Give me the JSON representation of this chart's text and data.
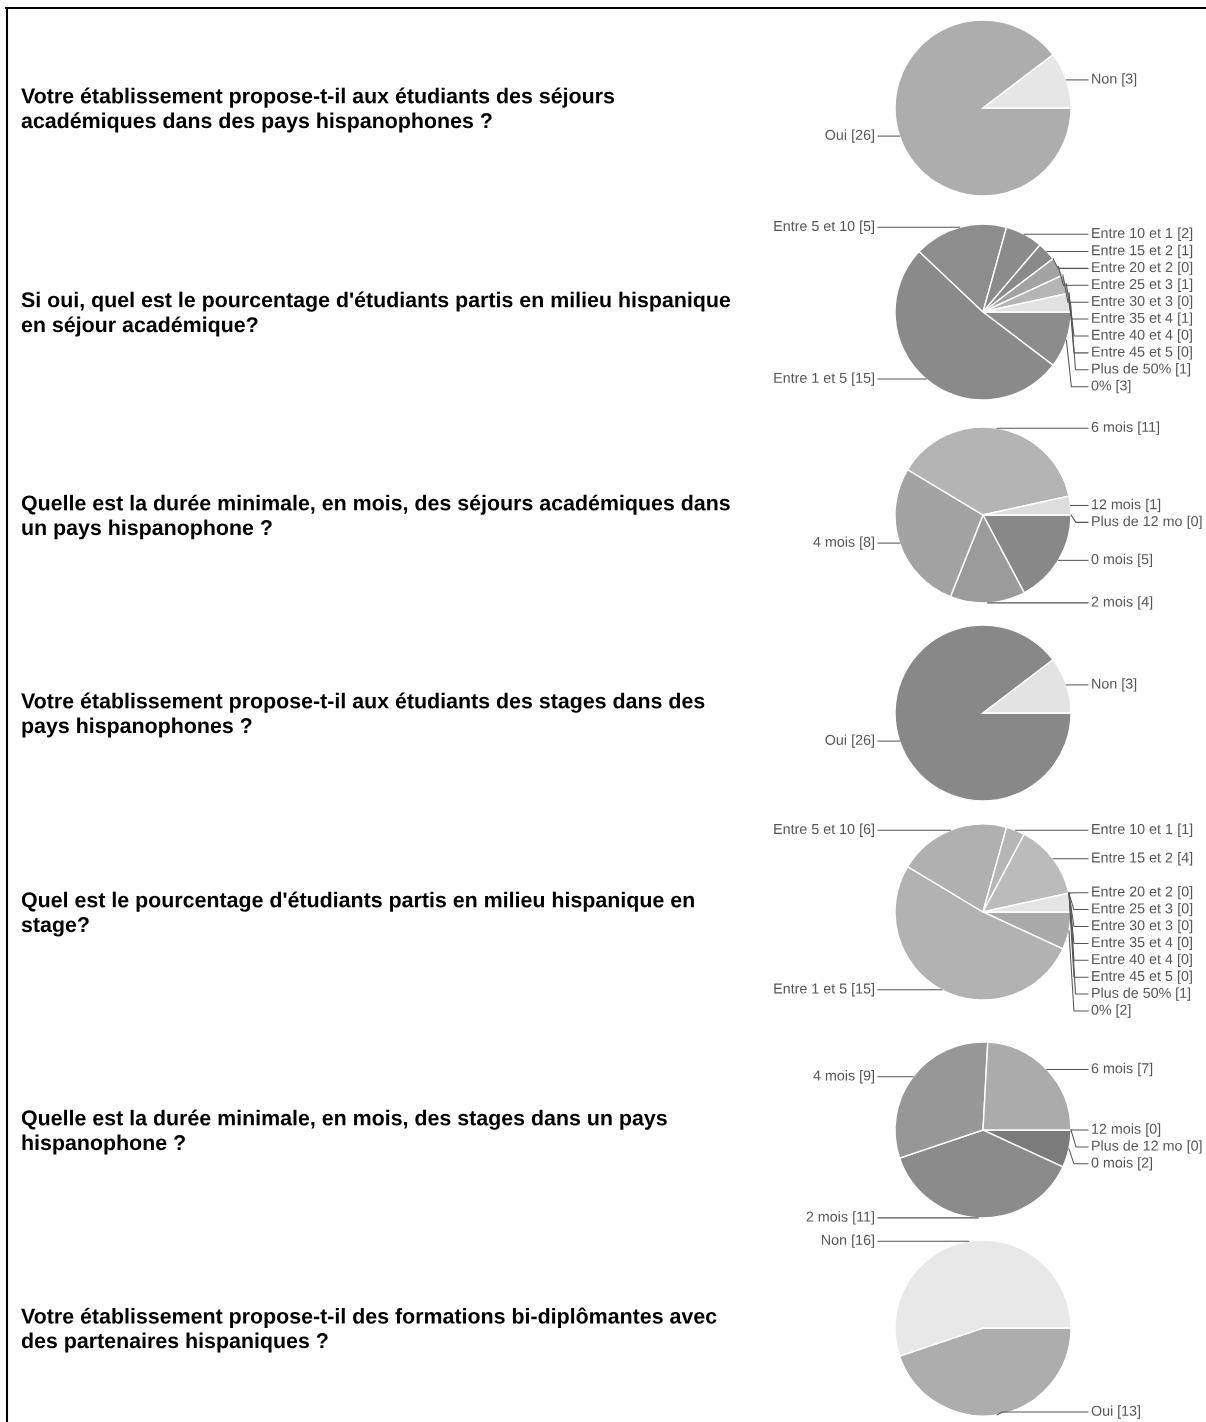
{
  "chart_data": [
    {
      "type": "pie",
      "title": "Votre établissement propose-t-il aux étudiants des séjours\nacadémiques dans des pays hispanophones ?",
      "categories": [
        "Oui",
        "Non"
      ],
      "values": [
        26,
        3
      ],
      "value_labels": [
        "[26]",
        "[3]"
      ],
      "colors": [
        "#adadad",
        "#e6e6e6"
      ]
    },
    {
      "type": "pie",
      "title": "Si oui, quel est le pourcentage d'étudiants partis en milieu hispanique\nen séjour académique?",
      "categories": [
        "0%",
        "Entre 1 et 5",
        "Entre 5 et 10",
        "Entre 10 et 1",
        "Entre 15 et 2",
        "Entre 20 et 2",
        "Entre 25 et 3",
        "Entre 30 et 3",
        "Entre 35 et 4",
        "Entre 40 et 4",
        "Entre 45 et 5",
        "Plus de 50%"
      ],
      "values": [
        3,
        15,
        5,
        2,
        1,
        0,
        1,
        0,
        1,
        0,
        0,
        1
      ],
      "value_labels": [
        "[3]",
        "[15]",
        "[5]",
        "[2]",
        "[1]",
        "[0]",
        "[1]",
        "[0]",
        "[1]",
        "[0]",
        "[0]",
        "[1]"
      ],
      "colors": [
        "#8c8c8c",
        "#8a8a8a",
        "#8d8d8d",
        "#8b8b8b",
        "#8a8a8a",
        null,
        "#a3a3a3",
        null,
        "#b5b5b5",
        null,
        null,
        "#e2e2e2"
      ]
    },
    {
      "type": "pie",
      "title": "Quelle est la durée minimale, en mois, des séjours académiques dans\nun pays hispanophone ?",
      "categories": [
        "0 mois",
        "2 mois",
        "4 mois",
        "6 mois",
        "12 mois",
        "Plus de 12 mo"
      ],
      "values": [
        5,
        4,
        8,
        11,
        1,
        0
      ],
      "value_labels": [
        "[5]",
        "[4]",
        "[8]",
        "[11]",
        "[1]",
        "[0]"
      ],
      "colors": [
        "#888888",
        "#9b9b9b",
        "#a3a3a3",
        "#b4b4b4",
        "#dddddd",
        null
      ]
    },
    {
      "type": "pie",
      "title": "Votre établissement propose-t-il aux étudiants des stages dans des\npays hispanophones ?",
      "categories": [
        "Oui",
        "Non"
      ],
      "values": [
        26,
        3
      ],
      "value_labels": [
        "[26]",
        "[3]"
      ],
      "colors": [
        "#888888",
        "#e3e3e3"
      ]
    },
    {
      "type": "pie",
      "title": "Quel est le pourcentage d'étudiants partis en milieu hispanique en\nstage?",
      "categories": [
        "0%",
        "Entre 1 et 5",
        "Entre 5 et 10",
        "Entre 10 et 1",
        "Entre 15 et 2",
        "Entre 20 et 2",
        "Entre 25 et 3",
        "Entre 30 et 3",
        "Entre 35 et 4",
        "Entre 40 et 4",
        "Entre 45 et 5",
        "Plus de 50%"
      ],
      "values": [
        2,
        15,
        6,
        1,
        4,
        0,
        0,
        0,
        0,
        0,
        0,
        1
      ],
      "value_labels": [
        "[2]",
        "[15]",
        "[6]",
        "[1]",
        "[4]",
        "[0]",
        "[0]",
        "[0]",
        "[0]",
        "[0]",
        "[0]",
        "[1]"
      ],
      "colors": [
        "#a9a9a9",
        "#b2b2b2",
        "#b0b0b0",
        "#b6b6b6",
        "#bbbbbb",
        null,
        null,
        null,
        null,
        null,
        null,
        "#e4e4e4"
      ]
    },
    {
      "type": "pie",
      "title": "Quelle est la durée minimale, en mois, des stages dans un pays\nhispanophone ?",
      "categories": [
        "0 mois",
        "2 mois",
        "4 mois",
        "6 mois",
        "12 mois",
        "Plus de 12 mo"
      ],
      "values": [
        2,
        11,
        9,
        7,
        0,
        0
      ],
      "value_labels": [
        "[2]",
        "[11]",
        "[9]",
        "[7]",
        "[0]",
        "[0]"
      ],
      "colors": [
        "#7b7b7b",
        "#8b8b8b",
        "#979797",
        "#ababab",
        null,
        null
      ]
    },
    {
      "type": "pie",
      "title": "Votre établissement propose-t-il des formations bi-diplômantes avec\ndes partenaires hispaniques ?",
      "categories": [
        "Oui",
        "Non"
      ],
      "values": [
        13,
        16
      ],
      "value_labels": [
        "[13]",
        "[16]"
      ],
      "colors": [
        "#adadad",
        "#e8e8e8"
      ]
    }
  ]
}
